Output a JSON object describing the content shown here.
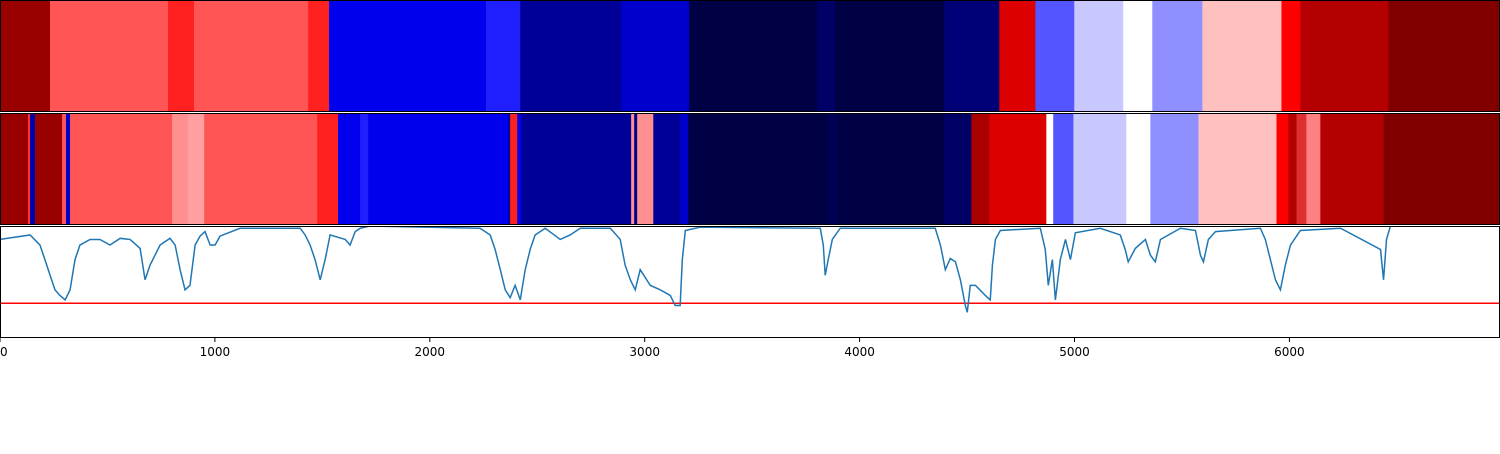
{
  "chart_data": {
    "type": "line",
    "xlim": [
      0,
      6980
    ],
    "ylim": [
      0,
      1
    ],
    "xticks": [
      0,
      1000,
      2000,
      3000,
      4000,
      5000,
      6000
    ],
    "strips": [
      {
        "edges": [
          0,
          233,
          782,
          903,
          1434,
          1531,
          2262,
          2421,
          2891,
          3207,
          3803,
          3887,
          4394,
          4650,
          4818,
          4999,
          5227,
          5362,
          5595,
          5963,
          6051,
          6461,
          6980
        ],
        "colors": [
          "#990000",
          "#ff5555",
          "#ff2020",
          "#ff5555",
          "#ff2020",
          "#0000ee",
          "#2020ff",
          "#000099",
          "#0000cc",
          "#000044",
          "#000066",
          "#000044",
          "#000077",
          "#dd0000",
          "#5555ff",
          "#c8c8ff",
          "#ffffff",
          "#8f8fff",
          "#ffc0c0",
          "#ff0000",
          "#b40000",
          "#800000"
        ]
      },
      {
        "edges": [
          0,
          130,
          140,
          163,
          289,
          307,
          326,
          801,
          875,
          950,
          1476,
          1573,
          1676,
          1713,
          2365,
          2374,
          2407,
          2425,
          2937,
          2951,
          2965,
          2979,
          3040,
          3165,
          3203,
          3850,
          3901,
          4394,
          4520,
          4604,
          4869,
          4901,
          4995,
          5241,
          5353,
          5577,
          5940,
          5995,
          6033,
          6079,
          6144,
          6438,
          6980
        ],
        "colors": [
          "#990000",
          "#ff3030",
          "#0000aa",
          "#990000",
          "#ff5555",
          "#0000cc",
          "#ff5555",
          "#ff9090",
          "#ff9f9f",
          "#ff5555",
          "#ff2020",
          "#0000ee",
          "#2020ff",
          "#0000ee",
          "#000088",
          "#ff2020",
          "#0000ee",
          "#000099",
          "#ff9090",
          "#000088",
          "#ff9090",
          "#ff9090",
          "#000099",
          "#0000cc",
          "#000044",
          "#000055",
          "#000044",
          "#000066",
          "#aa0000",
          "#dd0000",
          "#ffffff",
          "#5555ff",
          "#c8c8ff",
          "#ffffff",
          "#8f8fff",
          "#ffc0c0",
          "#ff0000",
          "#b40000",
          "#dd3030",
          "#ff8080",
          "#b40000",
          "#800000"
        ]
      }
    ],
    "threshold": {
      "value": 0.31,
      "color": "#ff0000"
    },
    "series": [
      {
        "color": "#1f77b4",
        "x": [
          0,
          140,
          186,
          209,
          233,
          256,
          279,
          303,
          326,
          349,
          372,
          419,
          465,
          512,
          559,
          605,
          652,
          675,
          698,
          745,
          791,
          815,
          838,
          861,
          884,
          908,
          931,
          954,
          978,
          1001,
          1024,
          1117,
          1397,
          1420,
          1443,
          1466,
          1490,
          1513,
          1536,
          1606,
          1629,
          1653,
          1676,
          1722,
          2234,
          2281,
          2304,
          2328,
          2351,
          2374,
          2397,
          2421,
          2444,
          2467,
          2490,
          2537,
          2607,
          2653,
          2700,
          2840,
          2886,
          2909,
          2933,
          2956,
          2979,
          3026,
          3072,
          3119,
          3142,
          3165,
          3175,
          3189,
          3259,
          3817,
          3831,
          3840,
          3854,
          3873,
          3910,
          4352,
          4376,
          4399,
          4422,
          4446,
          4469,
          4492,
          4501,
          4515,
          4539,
          4585,
          4608,
          4618,
          4632,
          4655,
          4841,
          4864,
          4878,
          4897,
          4911,
          4934,
          4958,
          4981,
          5004,
          5120,
          5213,
          5236,
          5250,
          5283,
          5330,
          5353,
          5376,
          5400,
          5493,
          5563,
          5586,
          5600,
          5623,
          5656,
          5865,
          5888,
          5935,
          5958,
          5981,
          6005,
          6051,
          6238,
          6424,
          6438,
          6452,
          6470
        ],
        "values": [
          0.88,
          0.92,
          0.83,
          0.7,
          0.56,
          0.43,
          0.38,
          0.34,
          0.43,
          0.7,
          0.83,
          0.88,
          0.88,
          0.83,
          0.89,
          0.88,
          0.8,
          0.52,
          0.65,
          0.83,
          0.89,
          0.83,
          0.61,
          0.43,
          0.47,
          0.83,
          0.91,
          0.95,
          0.83,
          0.83,
          0.91,
          0.98,
          0.98,
          0.92,
          0.83,
          0.7,
          0.52,
          0.7,
          0.92,
          0.88,
          0.83,
          0.95,
          0.98,
          1.0,
          0.98,
          0.92,
          0.79,
          0.61,
          0.43,
          0.36,
          0.47,
          0.34,
          0.61,
          0.79,
          0.92,
          0.98,
          0.88,
          0.92,
          0.98,
          0.98,
          0.88,
          0.65,
          0.52,
          0.43,
          0.61,
          0.47,
          0.43,
          0.38,
          0.29,
          0.29,
          0.7,
          0.96,
          0.99,
          0.98,
          0.83,
          0.56,
          0.7,
          0.88,
          0.98,
          0.98,
          0.83,
          0.61,
          0.71,
          0.68,
          0.52,
          0.29,
          0.23,
          0.47,
          0.47,
          0.38,
          0.34,
          0.65,
          0.88,
          0.96,
          0.98,
          0.79,
          0.47,
          0.7,
          0.34,
          0.7,
          0.88,
          0.7,
          0.94,
          0.98,
          0.92,
          0.79,
          0.68,
          0.8,
          0.88,
          0.74,
          0.68,
          0.88,
          0.98,
          0.96,
          0.74,
          0.68,
          0.88,
          0.95,
          0.98,
          0.88,
          0.52,
          0.43,
          0.65,
          0.83,
          0.96,
          0.98,
          0.79,
          0.52,
          0.88,
          1.0
        ]
      }
    ]
  }
}
